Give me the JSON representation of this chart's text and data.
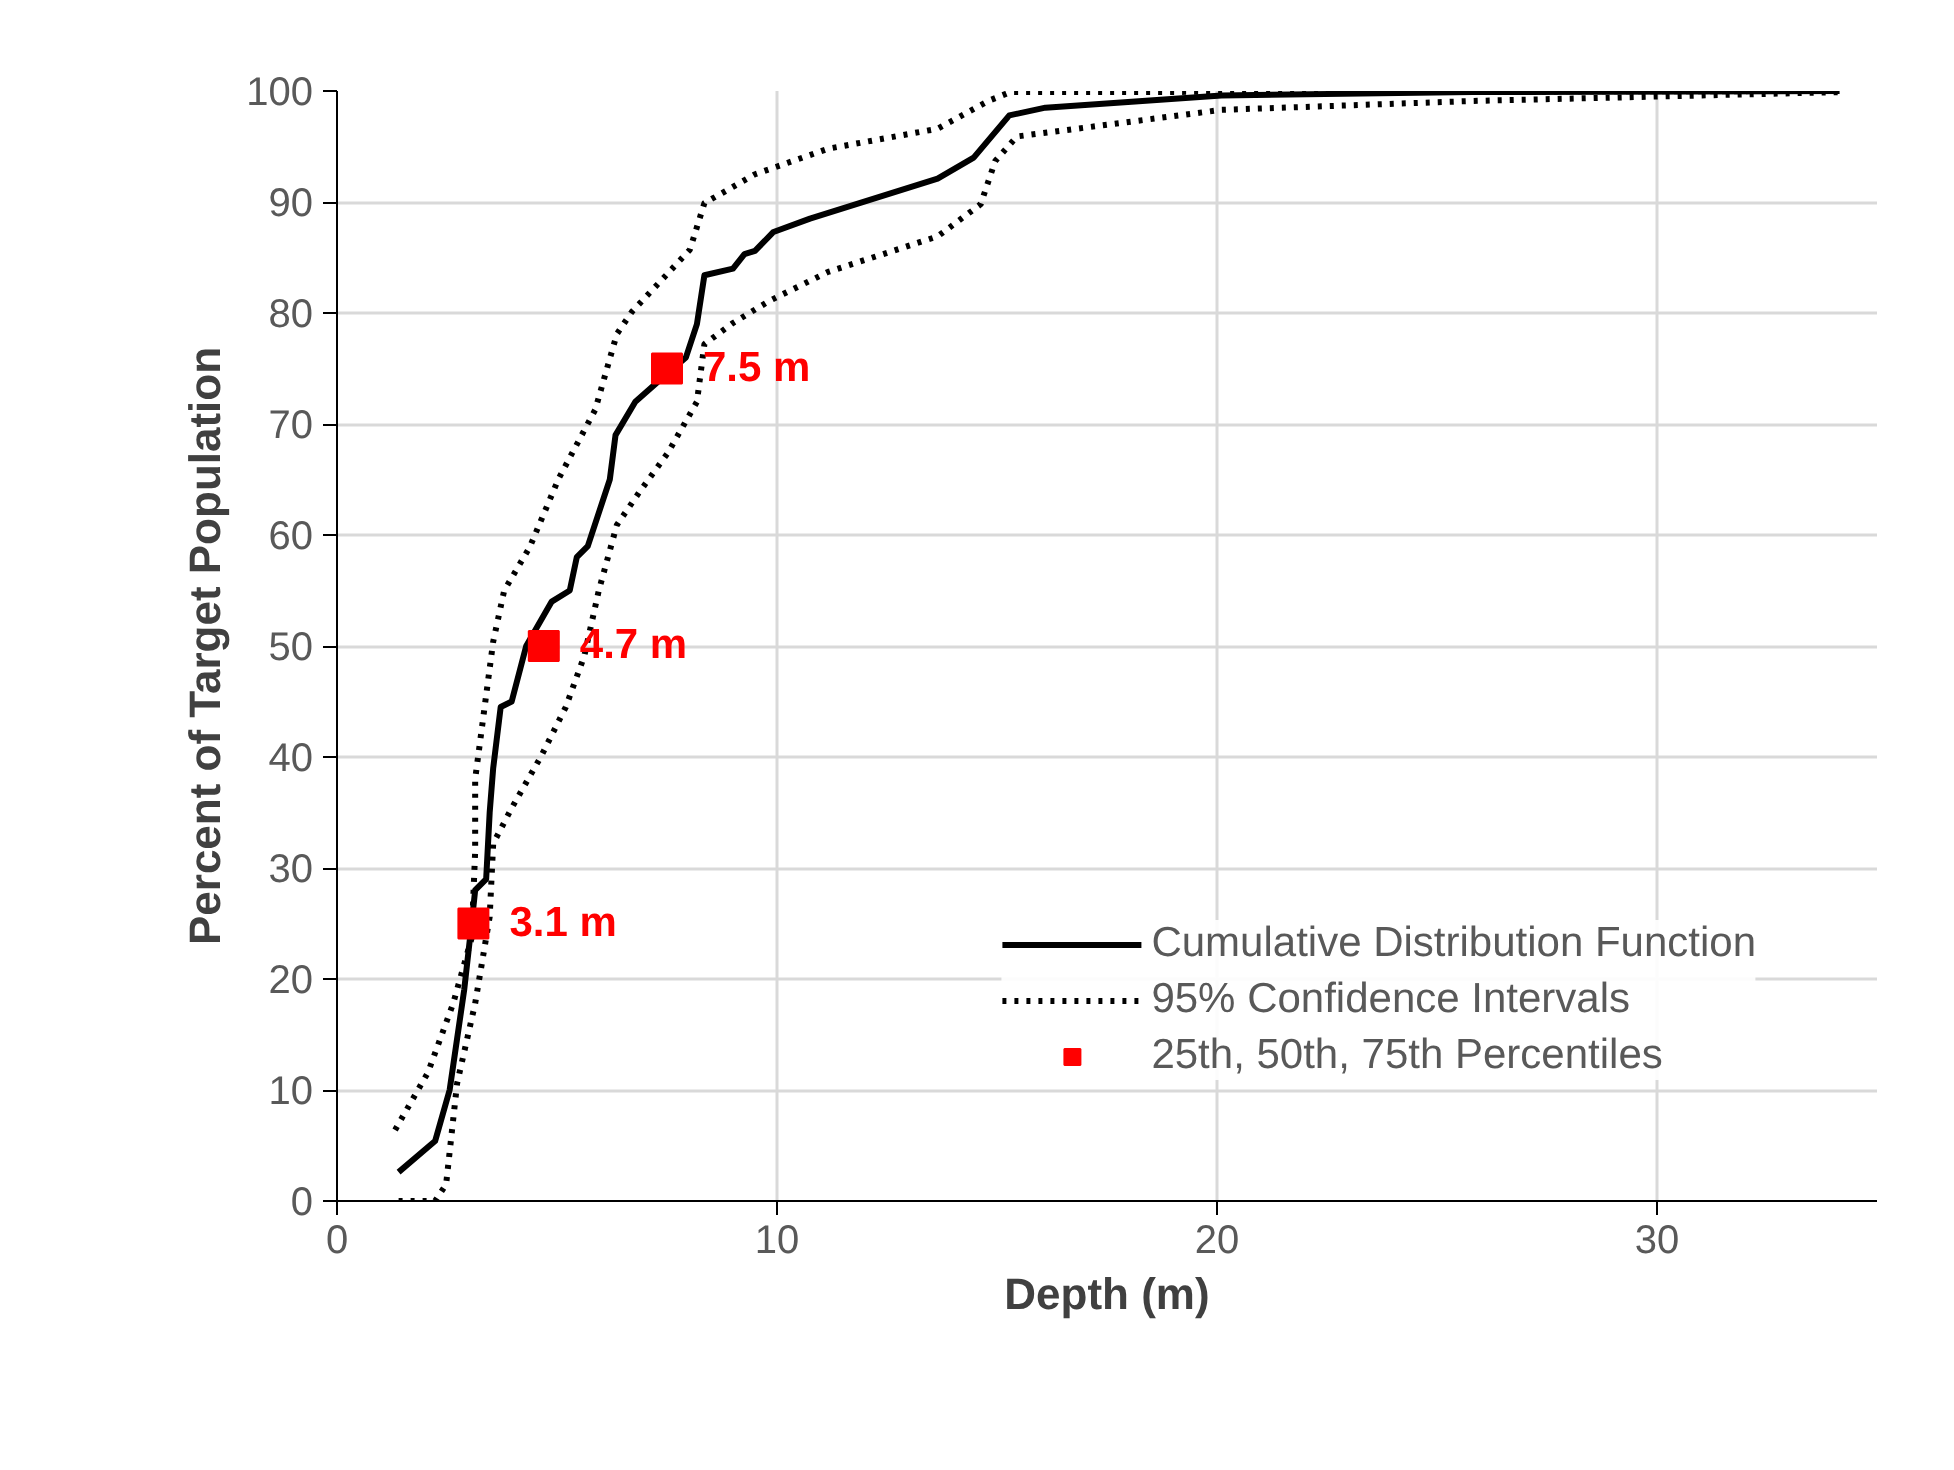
{
  "chart_data": {
    "type": "line",
    "xlabel": "Depth (m)",
    "ylabel": "Percent of Target Population",
    "xlim": [
      0,
      35
    ],
    "ylim": [
      0,
      100
    ],
    "xticks": [
      0,
      10,
      20,
      30
    ],
    "yticks": [
      0,
      10,
      20,
      30,
      40,
      50,
      60,
      70,
      80,
      90,
      100
    ],
    "grid": true,
    "legend": "bottom right",
    "series": [
      {
        "name": "Cumulative Distribution Function",
        "line_style": "solid",
        "color": "#000000",
        "x": [
          1.4,
          2.23,
          2.56,
          2.89,
          3.06,
          3.14,
          3.39,
          3.47,
          3.55,
          3.72,
          3.97,
          4.3,
          4.88,
          5.29,
          5.45,
          5.7,
          6.2,
          6.33,
          6.78,
          7.52,
          7.93,
          8.18,
          8.35,
          9.0,
          9.26,
          9.5,
          9.92,
          10.75,
          13.65,
          14.47,
          15.28,
          16.1,
          20.1,
          25.8,
          34.15
        ],
        "values": [
          2.6,
          5.4,
          10,
          19,
          25,
          28,
          29,
          35,
          39,
          44.5,
          45,
          50,
          54,
          55,
          58,
          59,
          65,
          69,
          72,
          74.6,
          76,
          79,
          83.4,
          84,
          85.3,
          85.6,
          87.3,
          88.5,
          92.1,
          94,
          97.8,
          98.5,
          99.6,
          99.9,
          100
        ]
      },
      {
        "name": "95% Confidence Intervals",
        "line_style": "dotted",
        "color": "#000000",
        "x": [
          1.32,
          2.07,
          2.64,
          3.06,
          3.14,
          3.14,
          3.55,
          3.8,
          4.38,
          5.04,
          5.87,
          6.36,
          6.7,
          8.02,
          8.35,
          9.5,
          11.16,
          13.65,
          14.8,
          15.3,
          34.15
        ],
        "values": [
          6.4,
          11.6,
          17.8,
          23.7,
          31.5,
          38,
          50.4,
          55,
          58.9,
          65.1,
          71.3,
          78.1,
          80.1,
          85.7,
          89.9,
          92.5,
          94.8,
          96.6,
          99.1,
          99.9,
          100
        ]
      },
      {
        "line_style": "dotted",
        "color": "#000000",
        "x": [
          1.4,
          2.23,
          2.48,
          2.73,
          3.14,
          3.47,
          3.55,
          3.97,
          4.63,
          5.2,
          5.62,
          5.95,
          6.36,
          6.86,
          7.52,
          8.18,
          8.35,
          9.0,
          9.83,
          11.16,
          13.65,
          14.63,
          14.96,
          15.45,
          20.1,
          25.8,
          34.15
        ],
        "values": [
          0,
          0,
          1.5,
          10.6,
          17.8,
          25.6,
          32.2,
          35.4,
          40,
          44.5,
          49.1,
          55,
          60.9,
          63.8,
          67.4,
          72,
          77.2,
          79.1,
          81.1,
          83.7,
          86.9,
          89.8,
          93.7,
          95.9,
          98.3,
          99.1,
          99.9
        ]
      },
      {
        "name": "25th, 50th, 75th Percentiles",
        "type": "scatter",
        "marker": "square",
        "color": "#ff0000",
        "x": [
          3.1,
          4.7,
          7.5
        ],
        "values": [
          25,
          50,
          75
        ]
      }
    ],
    "annotations": [
      {
        "text": "3.1 m",
        "x": 3.1,
        "y": 25
      },
      {
        "text": "4.7 m",
        "x": 4.7,
        "y": 50
      },
      {
        "text": "7.5 m",
        "x": 7.5,
        "y": 75
      }
    ]
  }
}
